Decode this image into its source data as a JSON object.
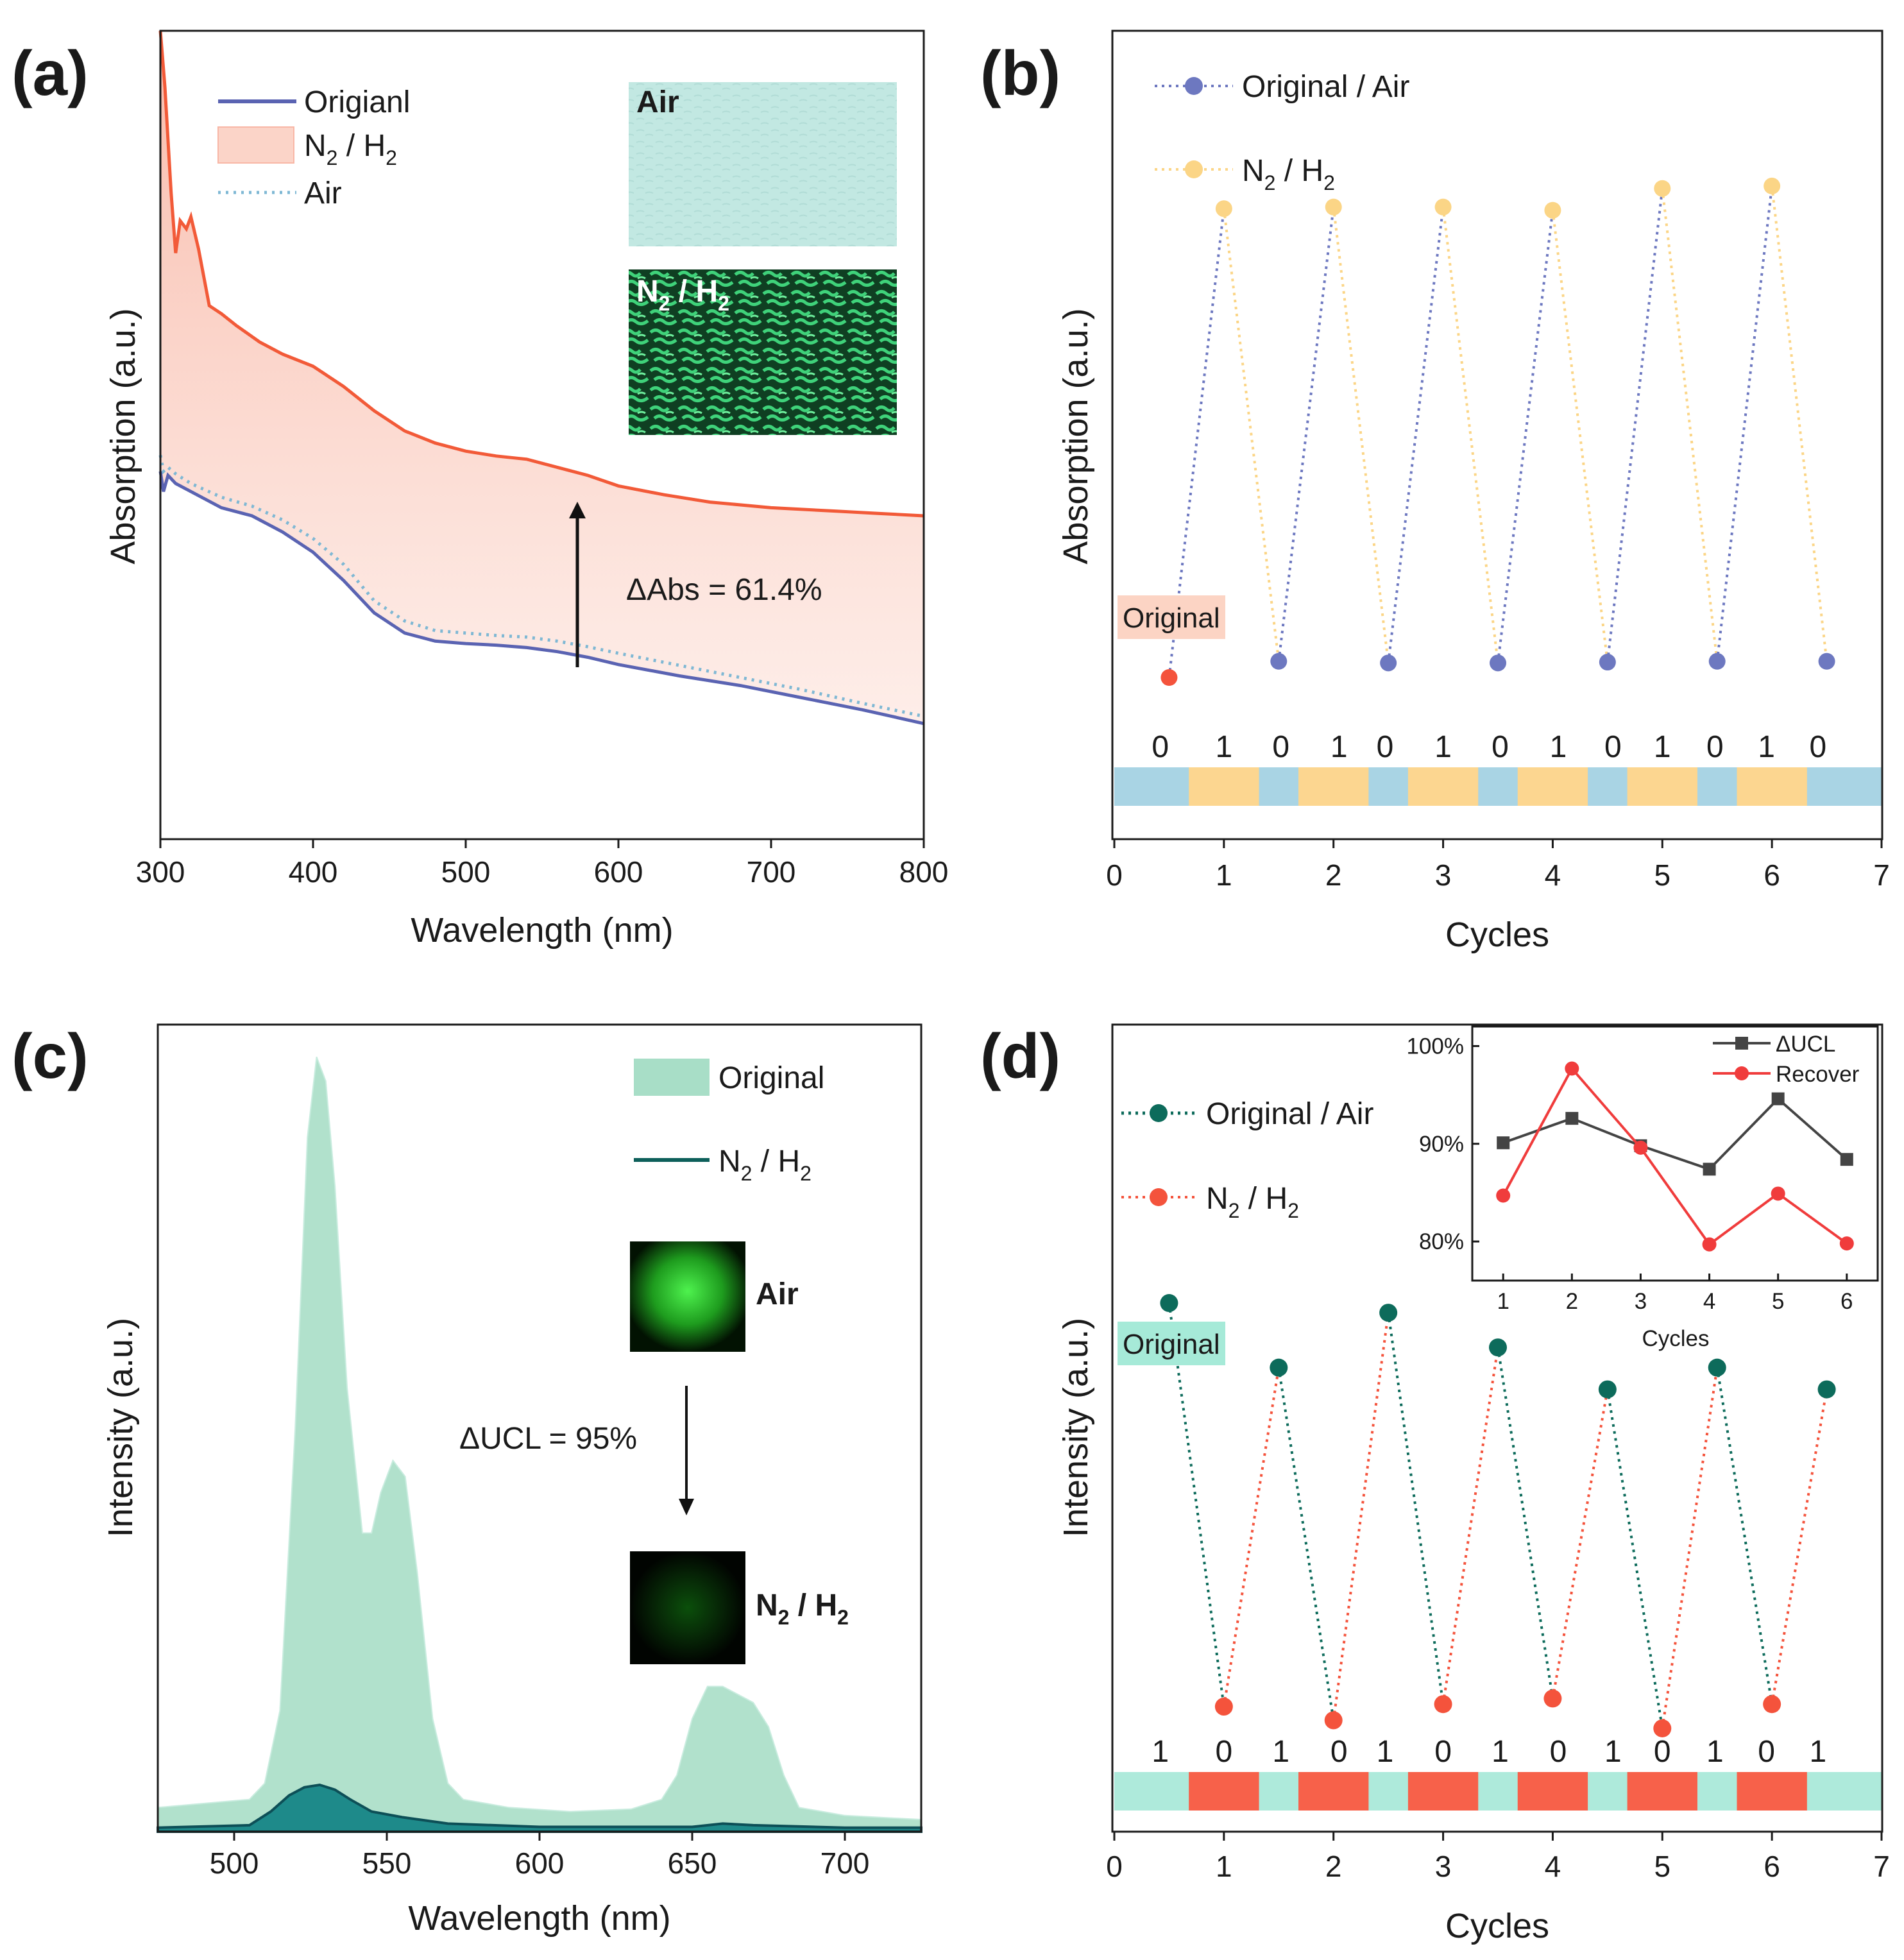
{
  "colors": {
    "original_line": "#5a63b2",
    "treated_line": "#f25a38",
    "air_dotted": "#7fb8d4",
    "fill_pink": "#fbd4c8",
    "dot_blue": "#6d78c0",
    "dot_yellow": "#fbd586",
    "bar_blue": "#a9d4e4",
    "bar_yellow": "#fcd690",
    "teal_dark": "#0d6b5b",
    "dot_red": "#f4533c",
    "bar_teal": "#aeeadb",
    "bar_red": "#f7614a",
    "green_fill": "#a8dec7",
    "inset_grey": "#444444",
    "inset_red": "#f03c3c",
    "badge_pink": "#fcd4c4",
    "badge_teal": "#a6ead8"
  },
  "chart_data": [
    {
      "panel": "(a)",
      "type": "line",
      "xlabel": "Wavelength (nm)",
      "ylabel": "Absorption (a.u.)",
      "xlim": [
        300,
        800
      ],
      "ylim": [
        0,
        1
      ],
      "xticks": [
        "300",
        "400",
        "500",
        "600",
        "700",
        "800"
      ],
      "legend": [
        "Origianl",
        "N",
        "2",
        " / H",
        "2",
        "Air"
      ],
      "inset_labels": {
        "air": "Air",
        "n2": "N",
        "n2_sub": "2",
        "n2_rest": " / H",
        "n2_sub2": "2"
      },
      "annotation": "ΔAbs = 61.4%",
      "series": [
        {
          "name": "N2 / H2",
          "x": [
            300,
            303,
            307,
            310,
            313,
            317,
            320,
            325,
            332,
            340,
            350,
            365,
            380,
            400,
            420,
            440,
            460,
            480,
            500,
            520,
            540,
            560,
            580,
            600,
            630,
            660,
            700,
            740,
            770,
            800
          ],
          "values": [
            1.0,
            0.93,
            0.8,
            0.725,
            0.765,
            0.755,
            0.77,
            0.73,
            0.66,
            0.65,
            0.635,
            0.615,
            0.6,
            0.585,
            0.56,
            0.53,
            0.505,
            0.49,
            0.48,
            0.474,
            0.47,
            0.46,
            0.45,
            0.437,
            0.426,
            0.417,
            0.41,
            0.406,
            0.403,
            0.4
          ]
        },
        {
          "name": "Origianl",
          "x": [
            300,
            302,
            305,
            310,
            320,
            340,
            360,
            380,
            400,
            420,
            440,
            460,
            480,
            500,
            520,
            540,
            560,
            580,
            600,
            640,
            680,
            720,
            760,
            800
          ],
          "values": [
            0.455,
            0.43,
            0.45,
            0.44,
            0.43,
            0.41,
            0.4,
            0.38,
            0.355,
            0.32,
            0.28,
            0.255,
            0.245,
            0.242,
            0.24,
            0.237,
            0.232,
            0.225,
            0.216,
            0.202,
            0.19,
            0.175,
            0.16,
            0.143
          ]
        },
        {
          "name": "Air",
          "x": [
            300,
            302,
            305,
            310,
            320,
            340,
            360,
            380,
            400,
            420,
            440,
            460,
            480,
            500,
            520,
            540,
            560,
            580,
            600,
            640,
            680,
            720,
            760,
            800
          ],
          "values": [
            0.475,
            0.455,
            0.46,
            0.452,
            0.44,
            0.423,
            0.412,
            0.395,
            0.372,
            0.34,
            0.295,
            0.27,
            0.258,
            0.255,
            0.252,
            0.25,
            0.245,
            0.238,
            0.23,
            0.215,
            0.2,
            0.185,
            0.168,
            0.152
          ]
        }
      ]
    },
    {
      "panel": "(b)",
      "type": "line",
      "xlabel": "Cycles",
      "ylabel": "Absorption (a.u.)",
      "xlim": [
        0,
        7
      ],
      "ylim": [
        0,
        1
      ],
      "xticks": [
        "0",
        "1",
        "2",
        "3",
        "4",
        "5",
        "6",
        "7"
      ],
      "legend": [
        "Original / Air",
        "N",
        "2",
        " / H",
        "2"
      ],
      "badge": "Original",
      "original_point": {
        "x": 0.5,
        "y": 0.2
      },
      "original_air": {
        "x": [
          1.5,
          2.5,
          3.5,
          4.5,
          5.5,
          6.5
        ],
        "y": [
          0.22,
          0.218,
          0.218,
          0.219,
          0.22,
          0.22
        ]
      },
      "n2_h2": {
        "x": [
          1,
          2,
          3,
          4,
          5,
          6
        ],
        "y": [
          0.78,
          0.782,
          0.782,
          0.778,
          0.805,
          0.808
        ]
      },
      "state_labels": [
        "0",
        "1",
        "0",
        "1",
        "0",
        "1",
        "0",
        "1",
        "0",
        "1",
        "0",
        "1",
        "0"
      ],
      "state_label_x": [
        0.42,
        1.0,
        1.52,
        2.05,
        2.47,
        3.0,
        3.52,
        4.05,
        4.55,
        5.0,
        5.48,
        5.95,
        6.42
      ]
    },
    {
      "panel": "(c)",
      "type": "area",
      "xlabel": "Wavelength (nm)",
      "ylabel": "Intensity (a.u.)",
      "xlim": [
        475,
        725
      ],
      "ylim": [
        0,
        1
      ],
      "xticks": [
        "500",
        "550",
        "600",
        "650",
        "700"
      ],
      "legend": [
        "Original",
        "N",
        "2",
        " / H",
        "2"
      ],
      "annotation": "ΔUCL = 95%",
      "inset_labels": {
        "air": "Air",
        "n2": "N",
        "n2_sub": "2",
        "n2_rest": " / H",
        "n2_sub2": "2"
      },
      "series": [
        {
          "name": "Original",
          "x": [
            475,
            490,
            505,
            510,
            515,
            520,
            524,
            527,
            530,
            533,
            537,
            542,
            545,
            548,
            552,
            556,
            560,
            565,
            570,
            575,
            590,
            610,
            630,
            640,
            645,
            650,
            655,
            660,
            665,
            670,
            675,
            680,
            685,
            700,
            725
          ],
          "values": [
            0.03,
            0.035,
            0.04,
            0.06,
            0.15,
            0.5,
            0.86,
            0.96,
            0.93,
            0.8,
            0.55,
            0.37,
            0.37,
            0.42,
            0.46,
            0.44,
            0.32,
            0.14,
            0.06,
            0.04,
            0.03,
            0.025,
            0.028,
            0.04,
            0.07,
            0.14,
            0.18,
            0.18,
            0.17,
            0.16,
            0.13,
            0.07,
            0.03,
            0.02,
            0.015
          ]
        },
        {
          "name": "N2 / H2",
          "x": [
            475,
            505,
            512,
            518,
            523,
            528,
            533,
            538,
            545,
            555,
            570,
            600,
            650,
            660,
            670,
            700,
            725
          ],
          "values": [
            0.005,
            0.008,
            0.025,
            0.045,
            0.055,
            0.058,
            0.052,
            0.04,
            0.025,
            0.018,
            0.01,
            0.006,
            0.006,
            0.01,
            0.008,
            0.005,
            0.005
          ]
        }
      ]
    },
    {
      "panel": "(d)",
      "type": "line",
      "xlabel": "Cycles",
      "ylabel": "Intensity (a.u.)",
      "xlim": [
        0,
        7
      ],
      "ylim": [
        0,
        1
      ],
      "xticks": [
        "0",
        "1",
        "2",
        "3",
        "4",
        "5",
        "6",
        "7"
      ],
      "legend": [
        "Original / Air",
        "N",
        "2",
        " / H",
        "2"
      ],
      "badge": "Original",
      "original_air": {
        "x": [
          0.5,
          1.5,
          2.5,
          3.5,
          4.5,
          5.5,
          6.5
        ],
        "y": [
          0.655,
          0.575,
          0.643,
          0.6,
          0.548,
          0.575,
          0.548
        ]
      },
      "n2_h2": {
        "x": [
          1,
          2,
          3,
          4,
          5,
          6
        ],
        "y": [
          0.155,
          0.138,
          0.158,
          0.165,
          0.128,
          0.158
        ]
      },
      "state_labels": [
        "1",
        "0",
        "1",
        "0",
        "1",
        "0",
        "1",
        "0",
        "1",
        "0",
        "1",
        "0",
        "1"
      ],
      "state_label_x": [
        0.42,
        1.0,
        1.52,
        2.05,
        2.47,
        3.0,
        3.52,
        4.05,
        4.55,
        5.0,
        5.48,
        5.95,
        6.42
      ],
      "inset": {
        "xlabel": "Cycles",
        "xlim": [
          0.55,
          6.45
        ],
        "ylim": [
          0.76,
          1.02
        ],
        "xticks": [
          "1",
          "2",
          "3",
          "4",
          "5",
          "6"
        ],
        "yticks": [
          "80%",
          "90%",
          "100%"
        ],
        "legend": [
          "ΔUCL",
          "Recover"
        ],
        "series": [
          {
            "name": "ΔUCL",
            "x": [
              1,
              2,
              3,
              4,
              5,
              6
            ],
            "values": [
              0.901,
              0.926,
              0.898,
              0.874,
              0.946,
              0.884
            ]
          },
          {
            "name": "Recover",
            "x": [
              1,
              2,
              3,
              4,
              5,
              6
            ],
            "values": [
              0.847,
              0.977,
              0.896,
              0.797,
              0.849,
              0.798
            ]
          }
        ]
      }
    }
  ]
}
